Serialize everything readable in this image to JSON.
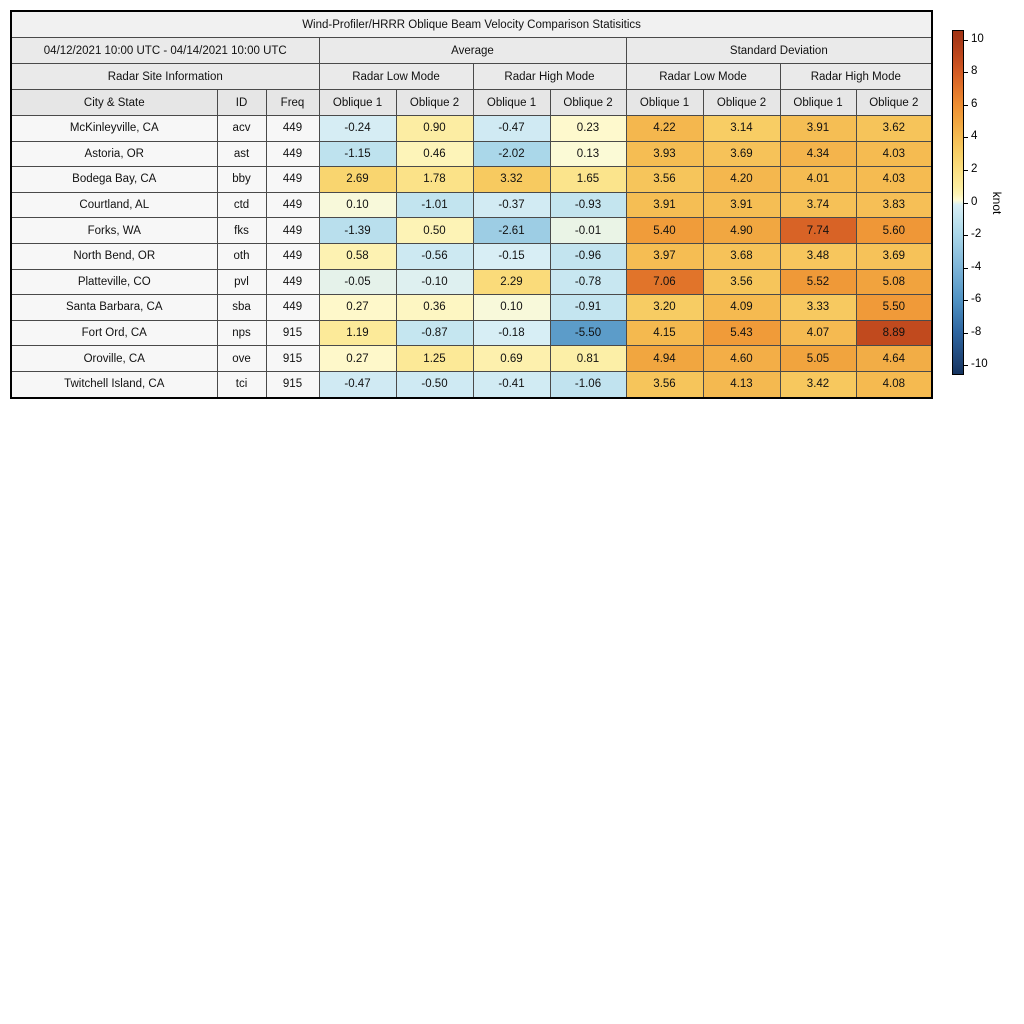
{
  "chart_data": {
    "type": "heatmap",
    "title": "Wind-Profiler/HRRR Oblique Beam Velocity Comparison Statisitics",
    "date_range": "04/12/2021 10:00 UTC - 04/14/2021 10:00 UTC",
    "col_groups": [
      "Average",
      "Standard Deviation"
    ],
    "site_info_header": "Radar Site Information",
    "mode_headers": [
      "Radar Low Mode",
      "Radar High Mode",
      "Radar Low Mode",
      "Radar High Mode"
    ],
    "site_columns": [
      "City & State",
      "ID",
      "Freq"
    ],
    "value_columns": [
      "Oblique 1",
      "Oblique 2",
      "Oblique 1",
      "Oblique 2",
      "Oblique 1",
      "Oblique 2",
      "Oblique 1",
      "Oblique 2"
    ],
    "rows": [
      {
        "city": "McKinleyville, CA",
        "id": "acv",
        "freq": "449",
        "values": [
          -0.24,
          0.9,
          -0.47,
          0.23,
          4.22,
          3.14,
          3.91,
          3.62
        ]
      },
      {
        "city": "Astoria, OR",
        "id": "ast",
        "freq": "449",
        "values": [
          -1.15,
          0.46,
          -2.02,
          0.13,
          3.93,
          3.69,
          4.34,
          4.03
        ]
      },
      {
        "city": "Bodega Bay, CA",
        "id": "bby",
        "freq": "449",
        "values": [
          2.69,
          1.78,
          3.32,
          1.65,
          3.56,
          4.2,
          4.01,
          4.03
        ]
      },
      {
        "city": "Courtland, AL",
        "id": "ctd",
        "freq": "449",
        "values": [
          0.1,
          -1.01,
          -0.37,
          -0.93,
          3.91,
          3.91,
          3.74,
          3.83
        ]
      },
      {
        "city": "Forks, WA",
        "id": "fks",
        "freq": "449",
        "values": [
          -1.39,
          0.5,
          -2.61,
          -0.01,
          5.4,
          4.9,
          7.74,
          5.6
        ]
      },
      {
        "city": "North Bend, OR",
        "id": "oth",
        "freq": "449",
        "values": [
          0.58,
          -0.56,
          -0.15,
          -0.96,
          3.97,
          3.68,
          3.48,
          3.69
        ]
      },
      {
        "city": "Platteville, CO",
        "id": "pvl",
        "freq": "449",
        "values": [
          -0.05,
          -0.1,
          2.29,
          -0.78,
          7.06,
          3.56,
          5.52,
          5.08
        ]
      },
      {
        "city": "Santa Barbara, CA",
        "id": "sba",
        "freq": "449",
        "values": [
          0.27,
          0.36,
          0.1,
          -0.91,
          3.2,
          4.09,
          3.33,
          5.5
        ]
      },
      {
        "city": "Fort Ord, CA",
        "id": "nps",
        "freq": "915",
        "values": [
          1.19,
          -0.87,
          -0.18,
          -5.5,
          4.15,
          5.43,
          4.07,
          8.89
        ]
      },
      {
        "city": "Oroville, CA",
        "id": "ove",
        "freq": "915",
        "values": [
          0.27,
          1.25,
          0.69,
          0.81,
          4.94,
          4.6,
          5.05,
          4.64
        ]
      },
      {
        "city": "Twitchell Island, CA",
        "id": "tci",
        "freq": "915",
        "values": [
          -0.47,
          -0.5,
          -0.41,
          -1.06,
          3.56,
          4.13,
          3.42,
          4.08
        ]
      }
    ],
    "colorbar": {
      "label": "knot",
      "ticks": [
        10,
        8,
        6,
        4,
        2,
        0,
        -2,
        -4,
        -6,
        -8,
        -10
      ],
      "vmin": -10.6,
      "vmax": 10.6,
      "stops": [
        [
          -10.6,
          "#14335f"
        ],
        [
          -10,
          "#1d4070"
        ],
        [
          -8,
          "#2e66a1"
        ],
        [
          -6,
          "#5093c4"
        ],
        [
          -4,
          "#7eb5d8"
        ],
        [
          -2,
          "#aad7e9"
        ],
        [
          -1,
          "#c2e4ef"
        ],
        [
          -0.15,
          "#d8eef5"
        ],
        [
          0.15,
          "#fefbd4"
        ],
        [
          0.5,
          "#fdf3b6"
        ],
        [
          1,
          "#fcec9e"
        ],
        [
          2,
          "#fbdf82"
        ],
        [
          3,
          "#f8d067"
        ],
        [
          4,
          "#f5bc52"
        ],
        [
          5,
          "#f1a53f"
        ],
        [
          6,
          "#ee8e32"
        ],
        [
          7,
          "#e2752a"
        ],
        [
          8,
          "#d45c24"
        ],
        [
          9,
          "#bf481d"
        ],
        [
          10,
          "#a93918"
        ],
        [
          10.6,
          "#a23414"
        ]
      ]
    }
  }
}
